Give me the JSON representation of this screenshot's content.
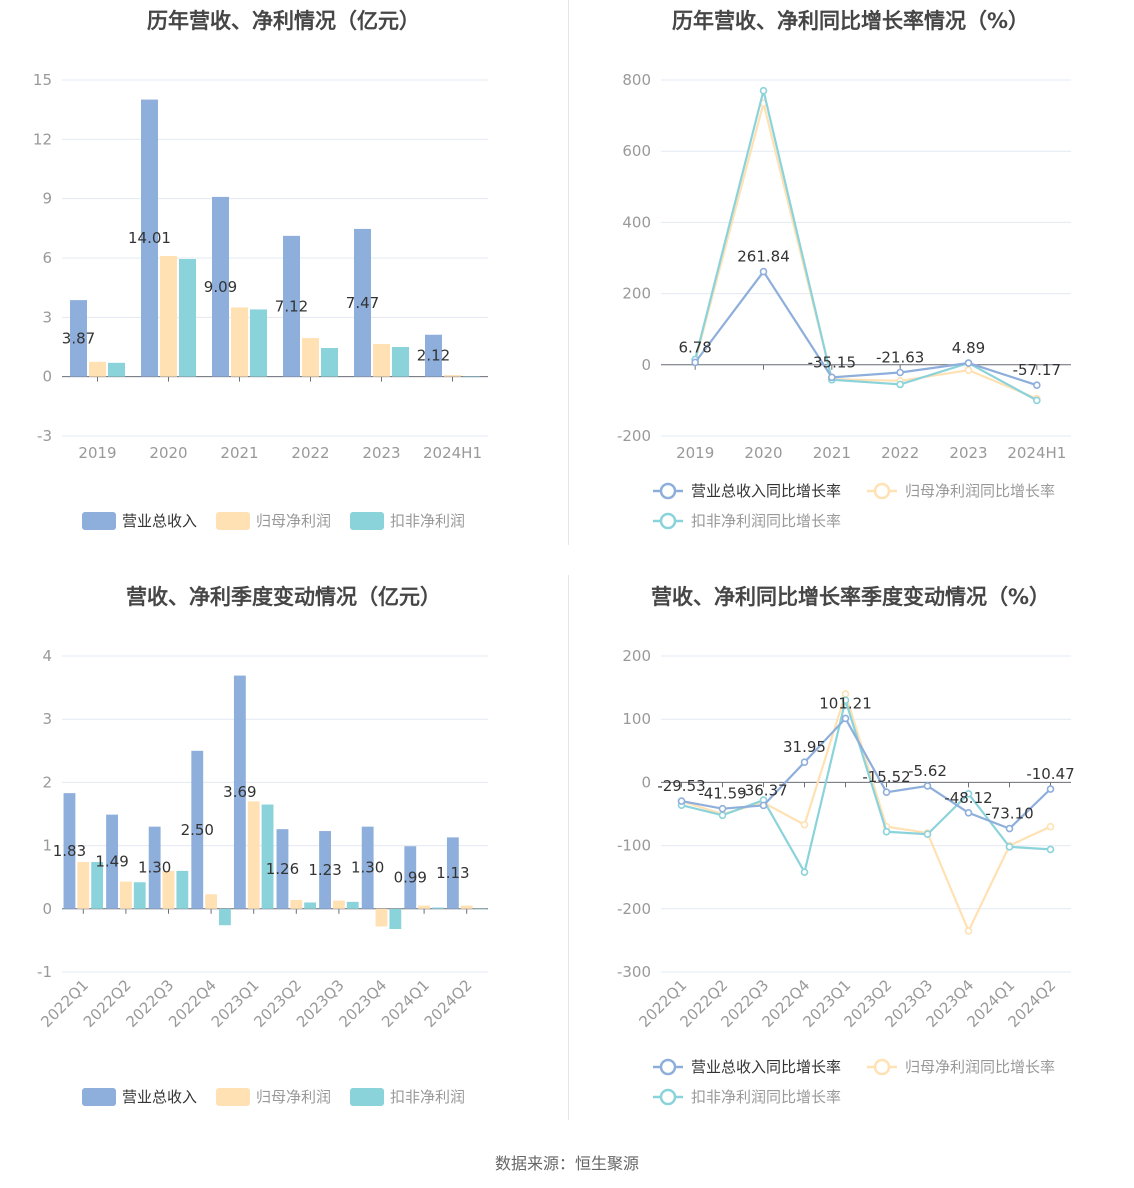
{
  "source": "数据来源：恒生聚源",
  "colors": {
    "revenue": "#8eaedb",
    "net_profit": "#ffe1b4",
    "deducted": "#8bd3db"
  },
  "chart_data": [
    {
      "id": "annual-amounts",
      "type": "bar",
      "title": "历年营收、净利情况（亿元）",
      "categories": [
        "2019",
        "2020",
        "2021",
        "2022",
        "2023",
        "2024H1"
      ],
      "ylim": [
        -3,
        15
      ],
      "yticks": [
        -3,
        0,
        3,
        6,
        9,
        12,
        15
      ],
      "legend_position": "bottom",
      "series": [
        {
          "name": "营业总收入",
          "values": [
            3.87,
            14.01,
            9.09,
            7.12,
            7.47,
            2.12
          ],
          "labels": [
            "3.87",
            "14.01",
            "9.09",
            "7.12",
            "7.47",
            "2.12"
          ]
        },
        {
          "name": "归母净利润",
          "values": [
            0.75,
            6.1,
            3.5,
            1.95,
            1.65,
            0.08
          ]
        },
        {
          "name": "扣非净利润",
          "values": [
            0.7,
            5.95,
            3.4,
            1.45,
            1.5,
            -0.03
          ]
        }
      ]
    },
    {
      "id": "annual-growth",
      "type": "line",
      "title": "历年营收、净利同比增长率情况（%）",
      "categories": [
        "2019",
        "2020",
        "2021",
        "2022",
        "2023",
        "2024H1"
      ],
      "ylim": [
        -200,
        800
      ],
      "yticks": [
        -200,
        0,
        200,
        400,
        600,
        800
      ],
      "legend_position": "bottom",
      "series": [
        {
          "name": "营业总收入同比增长率",
          "values": [
            6.78,
            261.84,
            -35.15,
            -21.63,
            4.89,
            -57.17
          ],
          "labels": [
            "6.78",
            "261.84",
            "-35.15",
            "-21.63",
            "4.89",
            "-57.17"
          ]
        },
        {
          "name": "归母净利润同比增长率",
          "values": [
            10,
            735,
            -40,
            -45,
            -15,
            -95
          ]
        },
        {
          "name": "扣非净利润同比增长率",
          "values": [
            15,
            770,
            -42,
            -55,
            5,
            -100
          ]
        }
      ]
    },
    {
      "id": "quarterly-amounts",
      "type": "bar",
      "title": "营收、净利季度变动情况（亿元）",
      "categories": [
        "2022Q1",
        "2022Q2",
        "2022Q3",
        "2022Q4",
        "2023Q1",
        "2023Q2",
        "2023Q3",
        "2023Q4",
        "2024Q1",
        "2024Q2"
      ],
      "ylim": [
        -1,
        4
      ],
      "yticks": [
        -1,
        0,
        1,
        2,
        3,
        4
      ],
      "legend_position": "bottom",
      "series": [
        {
          "name": "营业总收入",
          "values": [
            1.83,
            1.49,
            1.3,
            2.5,
            3.69,
            1.26,
            1.23,
            1.3,
            0.99,
            1.13
          ],
          "labels": [
            "1.83",
            "1.49",
            "1.30",
            "2.50",
            "3.69",
            "1.26",
            "1.23",
            "1.30",
            "0.99",
            "1.13"
          ]
        },
        {
          "name": "归母净利润",
          "values": [
            0.74,
            0.43,
            0.6,
            0.23,
            1.7,
            0.14,
            0.13,
            -0.28,
            0.05,
            0.05
          ]
        },
        {
          "name": "扣非净利润",
          "values": [
            0.74,
            0.42,
            0.6,
            -0.26,
            1.65,
            0.1,
            0.11,
            -0.32,
            0.02,
            0.0
          ]
        }
      ]
    },
    {
      "id": "quarterly-growth",
      "type": "line",
      "title": "营收、净利同比增长率季度变动情况（%）",
      "categories": [
        "2022Q1",
        "2022Q2",
        "2022Q3",
        "2022Q4",
        "2023Q1",
        "2023Q2",
        "2023Q3",
        "2023Q4",
        "2024Q1",
        "2024Q2"
      ],
      "ylim": [
        -300,
        200
      ],
      "yticks": [
        -300,
        -200,
        -100,
        0,
        100,
        200
      ],
      "legend_position": "bottom",
      "series": [
        {
          "name": "营业总收入同比增长率",
          "values": [
            -29.53,
            -41.59,
            -36.37,
            31.95,
            101.21,
            -15.52,
            -5.62,
            -48.12,
            -73.1,
            -10.47
          ],
          "labels": [
            "-29.53",
            "-41.59",
            "-36.37",
            "31.95",
            "101.21",
            "-15.52",
            "-5.62",
            "-48.12",
            "-73.10",
            "-10.47"
          ]
        },
        {
          "name": "归母净利润同比增长率",
          "values": [
            -30,
            -50,
            -32,
            -67,
            140,
            -70,
            -80,
            -235,
            -100,
            -70
          ]
        },
        {
          "name": "扣非净利润同比增长率",
          "values": [
            -36,
            -52,
            -28,
            -142,
            130,
            -78,
            -82,
            -18,
            -102,
            -106
          ]
        }
      ]
    }
  ]
}
